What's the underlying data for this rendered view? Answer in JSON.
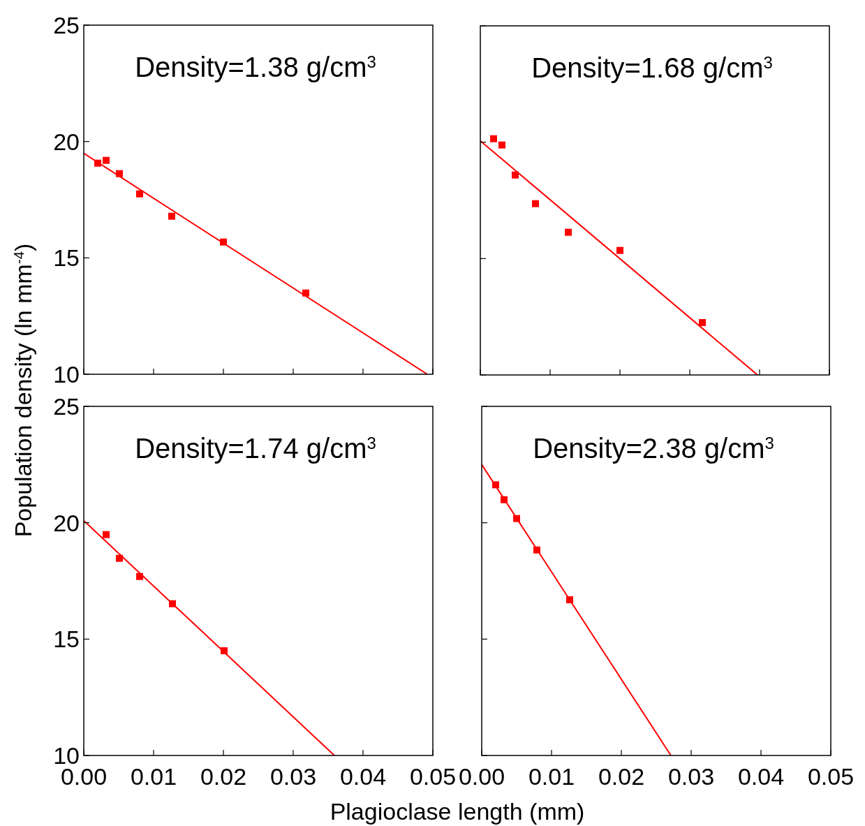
{
  "chart_data": [
    {
      "type": "scatter",
      "title": "Density=1.38 g/cm$^{3}$",
      "ylabel": "Population density (ln mm$^{-4}$)",
      "xlim": [
        0,
        0.05
      ],
      "ylim": [
        10,
        25
      ],
      "xticks": [
        0,
        0.01,
        0.02,
        0.03,
        0.04,
        0.05
      ],
      "yticks": [
        10,
        15,
        20,
        25
      ],
      "tick_labels": "y",
      "series": [
        {
          "marker": "square",
          "color": "#ff0000",
          "x": [
            0.002,
            0.0032,
            0.0051,
            0.008,
            0.0126,
            0.02,
            0.0318
          ],
          "values": [
            19.07,
            19.19,
            18.62,
            17.75,
            16.79,
            15.68,
            13.49
          ]
        },
        {
          "type": "line",
          "marker": "none",
          "color": "#ff0000",
          "x": [
            0,
            0.0492
          ],
          "values": [
            19.49,
            10
          ]
        }
      ]
    },
    {
      "type": "scatter",
      "title": "Density=1.68 g/cm$^{3}$",
      "xlim": [
        0,
        0.05
      ],
      "ylim": [
        10,
        25
      ],
      "xticks": [
        0,
        0.01,
        0.02,
        0.03,
        0.04,
        0.05
      ],
      "yticks": [
        10,
        15,
        20,
        25
      ],
      "tick_labels": false,
      "series": [
        {
          "marker": "square",
          "color": "#ff0000",
          "x": [
            0.0019,
            0.0031,
            0.005,
            0.0079,
            0.0126,
            0.02,
            0.0318
          ],
          "values": [
            20.15,
            19.88,
            18.59,
            17.36,
            16.13,
            15.35,
            12.25
          ]
        },
        {
          "type": "line",
          "marker": "none",
          "color": "#ff0000",
          "x": [
            0,
            0.0397
          ],
          "values": [
            20.06,
            10
          ]
        }
      ]
    },
    {
      "type": "scatter",
      "title": "Density=1.74 g/cm$^{3}$",
      "xlabel": "Plagioclase length (mm)",
      "xlim": [
        0,
        0.05
      ],
      "ylim": [
        10,
        25
      ],
      "xticks": [
        {
          "value": 0,
          "label": "0.00"
        },
        0.01,
        0.02,
        0.03,
        0.04,
        0.05
      ],
      "yticks": [
        10,
        15,
        20,
        25
      ],
      "series": [
        {
          "marker": "square",
          "color": "#ff0000",
          "x": [
            0.0032,
            0.0051,
            0.008,
            0.0127,
            0.0201
          ],
          "values": [
            19.49,
            18.47,
            17.69,
            16.52,
            14.5
          ]
        },
        {
          "type": "line",
          "marker": "none",
          "color": "#ff0000",
          "x": [
            0,
            0.0359
          ],
          "values": [
            20.09,
            10
          ]
        }
      ]
    },
    {
      "type": "scatter",
      "title": "Density=2.38 g/cm$^{3}$",
      "xlim": [
        0,
        0.05
      ],
      "ylim": [
        10,
        25
      ],
      "xticks": [
        {
          "value": 0,
          "label": "0.00"
        },
        0.01,
        0.02,
        0.03,
        0.04,
        0.05
      ],
      "yticks": [
        10,
        15,
        20,
        25
      ],
      "tick_labels": "x",
      "series": [
        {
          "marker": "square",
          "color": "#ff0000",
          "x": [
            0.002,
            0.0032,
            0.005,
            0.0079,
            0.0126
          ],
          "values": [
            21.63,
            20.99,
            20.18,
            18.83,
            16.69
          ]
        },
        {
          "type": "line",
          "marker": "none",
          "color": "#ff0000",
          "x": [
            0,
            0.0271
          ],
          "values": [
            22.5,
            10
          ]
        }
      ]
    }
  ]
}
